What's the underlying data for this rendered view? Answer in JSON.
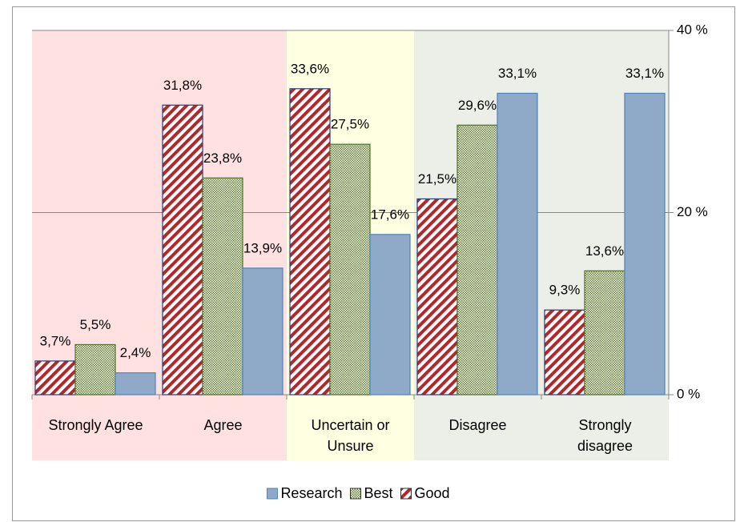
{
  "chart_data": {
    "type": "bar",
    "categories": [
      "Strongly Agree",
      "Agree",
      "Uncertain or\nUnsure",
      "Disagree",
      "Strongly\ndisagree"
    ],
    "category_backgrounds": [
      "#ffe1e1",
      "#ffe1e1",
      "#ffffe1",
      "#eceee8",
      "#eceee8"
    ],
    "series": [
      {
        "name": "Good",
        "color": "#b5262a",
        "pattern": "stripes",
        "values": [
          3.7,
          31.8,
          33.6,
          21.5,
          9.3
        ],
        "value_labels": [
          "3,7%",
          "31,8%",
          "33,6%",
          "21,5%",
          "9,3%"
        ]
      },
      {
        "name": "Best",
        "color": "#5e7f2c",
        "pattern": "dots",
        "values": [
          5.5,
          23.8,
          27.5,
          29.6,
          13.6
        ],
        "value_labels": [
          "5,5%",
          "23,8%",
          "27,5%",
          "29,6%",
          "13,6%"
        ]
      },
      {
        "name": "Research",
        "color": "#8eaac8",
        "pattern": "solid",
        "values": [
          2.4,
          13.9,
          17.6,
          33.1,
          33.1
        ],
        "value_labels": [
          "2,4%",
          "13,9%",
          "17,6%",
          "33,1%",
          "33,1%"
        ]
      }
    ],
    "legend_order": [
      2,
      1,
      0
    ],
    "ylim": [
      0,
      40
    ],
    "yticks": [
      {
        "value": 0,
        "label": "0 %"
      },
      {
        "value": 20,
        "label": "20 %"
      },
      {
        "value": 40,
        "label": "40 %"
      }
    ],
    "y_axis_side": "right",
    "legend": "bottom",
    "grid": true
  }
}
